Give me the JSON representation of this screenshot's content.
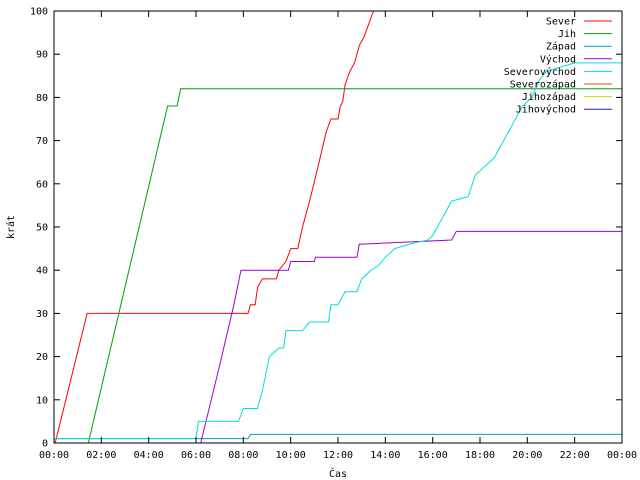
{
  "chart_data": {
    "type": "line",
    "xlabel": "Čas",
    "ylabel": "krát",
    "xlim": [
      0,
      24
    ],
    "ylim": [
      0,
      100
    ],
    "x_ticks": [
      {
        "v": 0,
        "label": "00:00"
      },
      {
        "v": 2,
        "label": "02:00"
      },
      {
        "v": 4,
        "label": "04:00"
      },
      {
        "v": 6,
        "label": "06:00"
      },
      {
        "v": 8,
        "label": "08:00"
      },
      {
        "v": 10,
        "label": "10:00"
      },
      {
        "v": 12,
        "label": "12:00"
      },
      {
        "v": 14,
        "label": "14:00"
      },
      {
        "v": 16,
        "label": "16:00"
      },
      {
        "v": 18,
        "label": "18:00"
      },
      {
        "v": 20,
        "label": "20:00"
      },
      {
        "v": 22,
        "label": "22:00"
      },
      {
        "v": 24,
        "label": "00:00"
      }
    ],
    "y_ticks": [
      0,
      10,
      20,
      30,
      40,
      50,
      60,
      70,
      80,
      90,
      100
    ],
    "grid": false,
    "legend_position": "top-right",
    "series": [
      {
        "name": "Sever",
        "color": "#ff0000",
        "points": [
          [
            0.05,
            0
          ],
          [
            1.4,
            30
          ],
          [
            8.2,
            30
          ],
          [
            8.3,
            32
          ],
          [
            8.5,
            32
          ],
          [
            8.6,
            36
          ],
          [
            8.8,
            38
          ],
          [
            9.4,
            38
          ],
          [
            9.5,
            40
          ],
          [
            9.8,
            42
          ],
          [
            10.0,
            45
          ],
          [
            10.3,
            45
          ],
          [
            10.5,
            50
          ],
          [
            10.8,
            56
          ],
          [
            11.2,
            65
          ],
          [
            11.5,
            72
          ],
          [
            11.7,
            75
          ],
          [
            12.0,
            75
          ],
          [
            12.1,
            78
          ],
          [
            12.2,
            79
          ],
          [
            12.3,
            83
          ],
          [
            12.5,
            86
          ],
          [
            12.7,
            88
          ],
          [
            12.9,
            92
          ],
          [
            13.1,
            94
          ],
          [
            13.3,
            97
          ],
          [
            13.5,
            100
          ]
        ]
      },
      {
        "name": "Jih",
        "color": "#00a000",
        "points": [
          [
            1.45,
            0
          ],
          [
            4.8,
            78
          ],
          [
            5.2,
            78
          ],
          [
            5.35,
            82
          ],
          [
            24,
            82
          ]
        ]
      },
      {
        "name": "Západ",
        "color": "#00a0c0",
        "points": [
          [
            0,
            1
          ],
          [
            8.2,
            1
          ],
          [
            8.3,
            2
          ],
          [
            24,
            2
          ]
        ]
      },
      {
        "name": "Východ",
        "color": "#a000d0",
        "points": [
          [
            6.2,
            0
          ],
          [
            7.0,
            18
          ],
          [
            7.6,
            32
          ],
          [
            7.9,
            40
          ],
          [
            9.9,
            40
          ],
          [
            10.0,
            42
          ],
          [
            11.0,
            42
          ],
          [
            11.05,
            43
          ],
          [
            12.8,
            43
          ],
          [
            12.9,
            46
          ],
          [
            16.8,
            47
          ],
          [
            17.0,
            49
          ],
          [
            24,
            49
          ]
        ]
      },
      {
        "name": "Severovýchod",
        "color": "#00e0e0",
        "points": [
          [
            0,
            1
          ],
          [
            6.0,
            1
          ],
          [
            6.1,
            5
          ],
          [
            7.8,
            5
          ],
          [
            8.0,
            8
          ],
          [
            8.6,
            8
          ],
          [
            8.8,
            12
          ],
          [
            9.1,
            20
          ],
          [
            9.5,
            22
          ],
          [
            9.7,
            22
          ],
          [
            9.8,
            26
          ],
          [
            10.5,
            26
          ],
          [
            10.8,
            28
          ],
          [
            11.6,
            28
          ],
          [
            11.7,
            32
          ],
          [
            12.0,
            32
          ],
          [
            12.3,
            35
          ],
          [
            12.8,
            35
          ],
          [
            13.0,
            38
          ],
          [
            13.4,
            40
          ],
          [
            13.7,
            41
          ],
          [
            14.0,
            43
          ],
          [
            14.4,
            45
          ],
          [
            15.0,
            46
          ],
          [
            15.8,
            47
          ],
          [
            16.0,
            48
          ],
          [
            16.4,
            52
          ],
          [
            16.8,
            56
          ],
          [
            17.5,
            57
          ],
          [
            17.8,
            62
          ],
          [
            18.2,
            64
          ],
          [
            18.6,
            66
          ],
          [
            19.0,
            70
          ],
          [
            19.4,
            74
          ],
          [
            19.8,
            78
          ],
          [
            20.2,
            80
          ],
          [
            20.5,
            84
          ],
          [
            20.8,
            86
          ],
          [
            21.4,
            87
          ],
          [
            22.0,
            88
          ],
          [
            24,
            88
          ]
        ]
      },
      {
        "name": "Severozápad",
        "color": "#d05000",
        "points": []
      },
      {
        "name": "Jihozápad",
        "color": "#d0d000",
        "points": []
      },
      {
        "name": "Jihovýchod",
        "color": "#3020a0",
        "points": []
      }
    ]
  }
}
